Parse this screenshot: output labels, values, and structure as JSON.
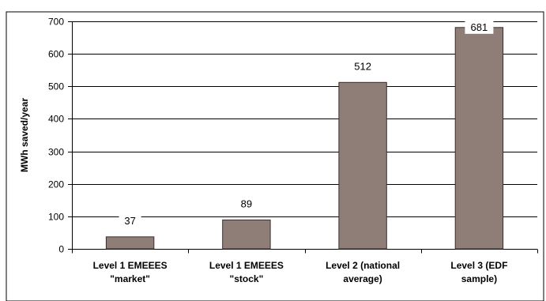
{
  "chart_data": {
    "type": "bar",
    "categories": [
      [
        "Level 1 EMEEES",
        "\"market\""
      ],
      [
        "Level 1 EMEEES",
        "\"stock\""
      ],
      [
        "Level 2 (national",
        "average)"
      ],
      [
        "Level 3 (EDF",
        "sample)"
      ]
    ],
    "values": [
      37,
      89,
      512,
      681
    ],
    "data_labels": [
      "37",
      "89",
      "512",
      "681"
    ],
    "ylabel": "MWh saved/year",
    "xlabel": "",
    "ylim": [
      0,
      700
    ],
    "yticks": [
      0,
      100,
      200,
      300,
      400,
      500,
      600,
      700
    ],
    "grid": true,
    "legend": "none",
    "colors": {
      "bar_fill": "#8f7d78",
      "bar_stroke": "#3a2f2c",
      "grid": "#000000",
      "frame": "#000000"
    }
  }
}
